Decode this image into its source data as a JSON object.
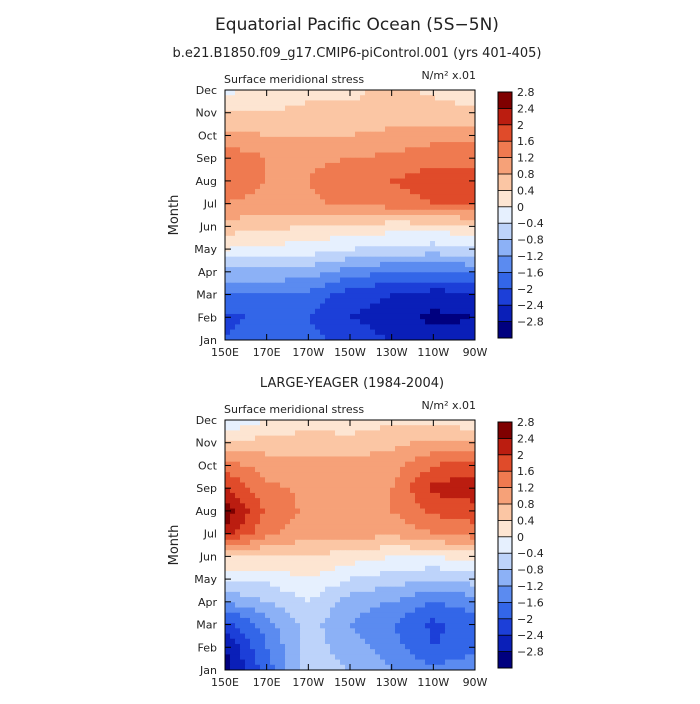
{
  "figure": {
    "title": "Equatorial Pacific Ocean (5S−5N)",
    "subtitle": "b.e21.B1850.f09_g17.CMIP6-piControl.001 (yrs 401-405)",
    "middle_title": "LARGE-YEAGER (1984-2004)"
  },
  "colors": {
    "palette": [
      "#00007f",
      "#0a1fb8",
      "#1c3fd8",
      "#3366e8",
      "#5b8bf0",
      "#8cb1f6",
      "#bdd3fa",
      "#e6f0fe",
      "#fde5d2",
      "#fbc6a4",
      "#f6a178",
      "#ef7a50",
      "#e04b2a",
      "#bb1d10",
      "#7f0000"
    ]
  },
  "chart_data": [
    {
      "type": "heatmap",
      "panel_label_left": "Surface meridional stress",
      "panel_label_right": "N/m² x.01",
      "ylabel": "Month",
      "x": [
        "150E",
        "170E",
        "170W",
        "150W",
        "130W",
        "110W",
        "90W"
      ],
      "y": [
        "Jan",
        "Feb",
        "Mar",
        "Apr",
        "May",
        "Jun",
        "Jul",
        "Aug",
        "Sep",
        "Oct",
        "Nov",
        "Dec"
      ],
      "values": [
        [
          -2.0,
          -1.7,
          -1.8,
          -2.2,
          -2.4,
          -2.6,
          -2.7
        ],
        [
          -2.1,
          -1.9,
          -2.0,
          -2.4,
          -2.6,
          -2.9,
          -2.8
        ],
        [
          -1.6,
          -1.6,
          -1.7,
          -2.2,
          -2.4,
          -2.6,
          -2.5
        ],
        [
          -0.9,
          -0.9,
          -1.0,
          -1.4,
          -1.6,
          -1.6,
          -1.5
        ],
        [
          0.0,
          -0.1,
          -0.2,
          -0.4,
          -0.5,
          -0.6,
          -0.5
        ],
        [
          0.6,
          0.5,
          0.4,
          0.3,
          0.2,
          0.2,
          0.3
        ],
        [
          1.2,
          1.1,
          1.1,
          1.3,
          1.4,
          1.6,
          1.7
        ],
        [
          1.4,
          1.2,
          1.2,
          1.5,
          1.6,
          1.8,
          1.8
        ],
        [
          1.5,
          1.2,
          1.1,
          1.2,
          1.3,
          1.5,
          1.5
        ],
        [
          0.9,
          0.8,
          0.8,
          0.8,
          0.9,
          1.0,
          1.0
        ],
        [
          0.4,
          0.4,
          0.5,
          0.5,
          0.6,
          0.6,
          0.5
        ],
        [
          -0.1,
          0.1,
          0.3,
          0.3,
          0.5,
          0.3,
          0.1
        ]
      ],
      "levels": [
        "-2.8",
        "-2.4",
        "-2",
        "-1.6",
        "-1.2",
        "-0.8",
        "-0.4",
        "0",
        "0.4",
        "0.8",
        "1.2",
        "1.6",
        "2",
        "2.4",
        "2.8"
      ]
    },
    {
      "type": "heatmap",
      "panel_label_left": "Surface meridional stress",
      "panel_label_right": "N/m² x.01",
      "ylabel": "Month",
      "x": [
        "150E",
        "170E",
        "170W",
        "150W",
        "130W",
        "110W",
        "90W"
      ],
      "y": [
        "Jan",
        "Feb",
        "Mar",
        "Apr",
        "May",
        "Jun",
        "Jul",
        "Aug",
        "Sep",
        "Oct",
        "Nov",
        "Dec"
      ],
      "values": [
        [
          -3.0,
          -1.8,
          -0.6,
          -0.8,
          -1.2,
          -1.5,
          -1.2
        ],
        [
          -2.8,
          -1.6,
          -0.6,
          -1.0,
          -1.4,
          -2.0,
          -1.8
        ],
        [
          -2.2,
          -1.4,
          -0.6,
          -1.2,
          -1.6,
          -2.1,
          -1.8
        ],
        [
          -1.2,
          -0.8,
          -0.4,
          -1.0,
          -1.2,
          -1.6,
          -1.4
        ],
        [
          -0.3,
          -0.3,
          0.0,
          -0.4,
          -0.6,
          -0.8,
          -0.6
        ],
        [
          0.4,
          0.4,
          0.4,
          0.2,
          0.0,
          0.0,
          0.2
        ],
        [
          2.2,
          1.3,
          0.9,
          1.0,
          0.9,
          1.2,
          1.4
        ],
        [
          2.7,
          1.5,
          1.1,
          1.2,
          1.2,
          1.7,
          1.8
        ],
        [
          2.0,
          1.3,
          1.1,
          1.1,
          1.2,
          2.1,
          2.3
        ],
        [
          1.4,
          1.0,
          0.9,
          0.9,
          1.0,
          1.6,
          1.8
        ],
        [
          0.4,
          0.6,
          0.6,
          0.6,
          0.7,
          0.9,
          0.8
        ],
        [
          -0.4,
          0.0,
          0.2,
          0.1,
          0.3,
          0.3,
          0.1
        ]
      ],
      "levels": [
        "-2.8",
        "-2.4",
        "-2",
        "-1.6",
        "-1.2",
        "-0.8",
        "-0.4",
        "0",
        "0.4",
        "0.8",
        "1.2",
        "1.6",
        "2",
        "2.4",
        "2.8"
      ]
    }
  ]
}
